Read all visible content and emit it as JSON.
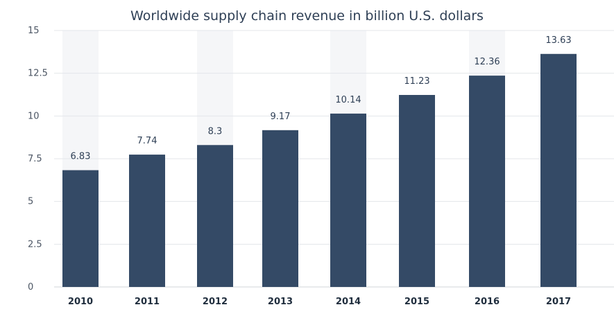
{
  "colors": {
    "bar": "#344a66",
    "band": "#f5f6f8",
    "grid": "#e3e6ea",
    "axis": "#d0d4d9",
    "tick_text": "#4b5563",
    "label_text": "#2e3f55",
    "category_text": "#1f2d3d"
  },
  "chart_data": {
    "type": "bar",
    "title": "Worldwide supply chain revenue in billion U.S. dollars",
    "xlabel": "",
    "ylabel": "",
    "categories": [
      "2010",
      "2011",
      "2012",
      "2013",
      "2014",
      "2015",
      "2016",
      "2017"
    ],
    "values": [
      6.83,
      7.74,
      8.3,
      9.17,
      10.14,
      11.23,
      12.36,
      13.63
    ],
    "value_labels": [
      "6.83",
      "7.74",
      "8.3",
      "9.17",
      "10.14",
      "11.23",
      "12.36",
      "13.63"
    ],
    "ylim": [
      0,
      15
    ],
    "yticks": [
      0,
      2.5,
      5,
      7.5,
      10,
      12.5,
      15
    ],
    "ytick_labels": [
      "0",
      "2.5",
      "5",
      "7.5",
      "10",
      "12.5",
      "15"
    ],
    "grid": true,
    "legend": "none"
  }
}
